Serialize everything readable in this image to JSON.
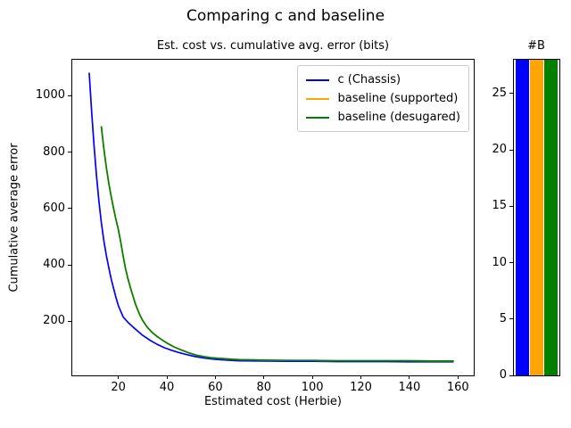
{
  "figure": {
    "suptitle": "Comparing c and baseline",
    "background": "#ffffff",
    "accent_colors": {
      "blue": "#0000ff",
      "orange": "#ffa500",
      "green": "#008000"
    }
  },
  "chart_data": [
    {
      "type": "line",
      "title": "Est. cost vs. cumulative avg. error (bits)",
      "xlabel": "Estimated cost (Herbie)",
      "ylabel": "Cumulative average error",
      "xlim": [
        1,
        166.5
      ],
      "ylim": [
        8,
        1128
      ],
      "xticks": [
        20,
        40,
        60,
        80,
        100,
        120,
        140,
        160
      ],
      "yticks": [
        200,
        400,
        600,
        800,
        1000
      ],
      "grid": false,
      "legend_position": "upper right",
      "series": [
        {
          "name": "c (Chassis)",
          "color": "#0000ff",
          "points": [
            [
              8,
              1080
            ],
            [
              9,
              940
            ],
            [
              10,
              820
            ],
            [
              11,
              715
            ],
            [
              12,
              625
            ],
            [
              13,
              550
            ],
            [
              14,
              488
            ],
            [
              15,
              435
            ],
            [
              16,
              392
            ],
            [
              17,
              352
            ],
            [
              18,
              318
            ],
            [
              19,
              285
            ],
            [
              20,
              255
            ],
            [
              22,
              215
            ],
            [
              24,
              196
            ],
            [
              26,
              180
            ],
            [
              28,
              165
            ],
            [
              30,
              150
            ],
            [
              33,
              133
            ],
            [
              36,
              118
            ],
            [
              39,
              106
            ],
            [
              42,
              97
            ],
            [
              45,
              89
            ],
            [
              48,
              82
            ],
            [
              51,
              76
            ],
            [
              55,
              70
            ],
            [
              60,
              65
            ],
            [
              65,
              62
            ],
            [
              70,
              60
            ],
            [
              80,
              59
            ],
            [
              90,
              58
            ],
            [
              100,
              58
            ],
            [
              110,
              57
            ],
            [
              120,
              57
            ],
            [
              130,
              57
            ],
            [
              140,
              56
            ],
            [
              150,
              56
            ],
            [
              158,
              56
            ]
          ]
        },
        {
          "name": "baseline (supported)",
          "color": "#ffa500",
          "points": [
            [
              13,
              890
            ],
            [
              14,
              815
            ],
            [
              15,
              748
            ],
            [
              16,
              692
            ],
            [
              17,
              645
            ],
            [
              18,
              602
            ],
            [
              19,
              562
            ],
            [
              20,
              525
            ],
            [
              21,
              480
            ],
            [
              22,
              430
            ],
            [
              23,
              385
            ],
            [
              24,
              350
            ],
            [
              25,
              318
            ],
            [
              26,
              290
            ],
            [
              27,
              262
            ],
            [
              28,
              240
            ],
            [
              29,
              220
            ],
            [
              30,
              203
            ],
            [
              32,
              178
            ],
            [
              34,
              160
            ],
            [
              36,
              146
            ],
            [
              38,
              134
            ],
            [
              40,
              123
            ],
            [
              43,
              109
            ],
            [
              46,
              98
            ],
            [
              49,
              88
            ],
            [
              52,
              80
            ],
            [
              55,
              75
            ],
            [
              58,
              71
            ],
            [
              62,
              68
            ],
            [
              66,
              66
            ],
            [
              70,
              64
            ],
            [
              80,
              62
            ],
            [
              90,
              61
            ],
            [
              100,
              61
            ],
            [
              110,
              60
            ],
            [
              120,
              60
            ],
            [
              130,
              60
            ],
            [
              140,
              60
            ],
            [
              150,
              59
            ],
            [
              158,
              59
            ]
          ]
        },
        {
          "name": "baseline (desugared)",
          "color": "#008000",
          "points": [
            [
              13,
              890
            ],
            [
              14,
              815
            ],
            [
              15,
              748
            ],
            [
              16,
              692
            ],
            [
              17,
              645
            ],
            [
              18,
              602
            ],
            [
              19,
              562
            ],
            [
              20,
              525
            ],
            [
              21,
              480
            ],
            [
              22,
              430
            ],
            [
              23,
              385
            ],
            [
              24,
              350
            ],
            [
              25,
              318
            ],
            [
              26,
              290
            ],
            [
              27,
              262
            ],
            [
              28,
              240
            ],
            [
              29,
              220
            ],
            [
              30,
              203
            ],
            [
              32,
              178
            ],
            [
              34,
              160
            ],
            [
              36,
              146
            ],
            [
              38,
              134
            ],
            [
              40,
              123
            ],
            [
              43,
              109
            ],
            [
              46,
              98
            ],
            [
              49,
              88
            ],
            [
              52,
              80
            ],
            [
              55,
              75
            ],
            [
              58,
              71
            ],
            [
              62,
              68
            ],
            [
              66,
              66
            ],
            [
              70,
              64
            ],
            [
              80,
              62
            ],
            [
              90,
              61
            ],
            [
              100,
              61
            ],
            [
              110,
              60
            ],
            [
              120,
              60
            ],
            [
              130,
              60
            ],
            [
              140,
              60
            ],
            [
              150,
              59
            ],
            [
              158,
              59
            ]
          ]
        }
      ]
    },
    {
      "type": "bar",
      "title": "#B",
      "categories": [
        "c (Chassis)",
        "baseline (supported)",
        "baseline (desugared)"
      ],
      "values": [
        28,
        28,
        28
      ],
      "colors": [
        "#0000ff",
        "#ffa500",
        "#008000"
      ],
      "ylim": [
        0,
        28
      ],
      "yticks": [
        0,
        5,
        10,
        15,
        20,
        25
      ],
      "bar_width_fraction": 0.9,
      "grid": false
    }
  ]
}
